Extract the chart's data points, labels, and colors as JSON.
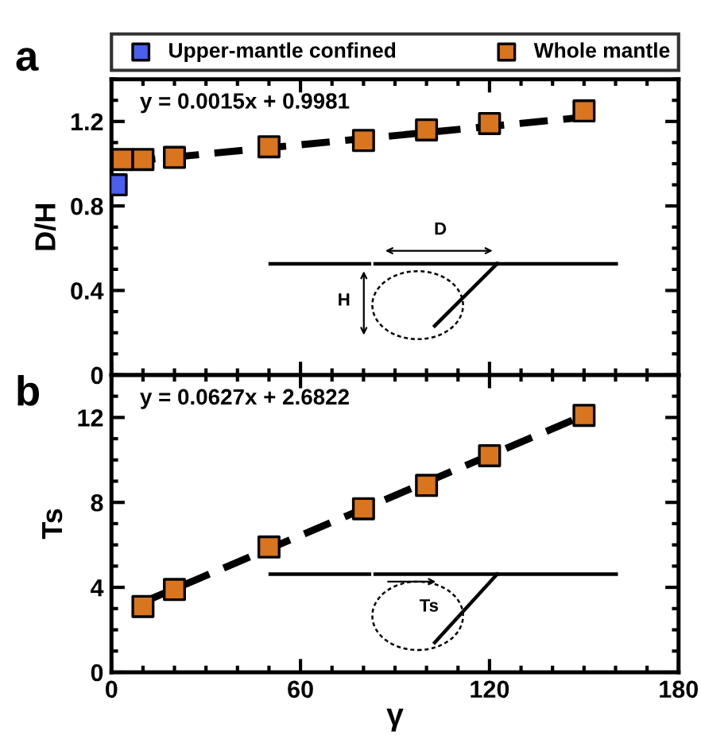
{
  "chart_data": [
    {
      "type": "scatter",
      "title": "a",
      "ylabel": "D/H",
      "xlim": [
        0,
        180
      ],
      "xticks": [
        0,
        60,
        120,
        180
      ],
      "ylim": [
        0,
        1.4
      ],
      "yticks": [
        {
          "value": 0,
          "label": "0"
        },
        0.4,
        0.8,
        1.2
      ],
      "tick_labels": "y",
      "legend": "top",
      "grid": false,
      "annotations": [
        "y = 0.0015x + 0.9981",
        "D",
        "H"
      ],
      "series": [
        {
          "name": "Upper-mantle confined",
          "color": "#4a5ef0",
          "marker": "square",
          "x": [
            1.5
          ],
          "values": [
            0.9
          ]
        },
        {
          "name": "Whole mantle",
          "color": "#d9741f",
          "marker": "square",
          "x": [
            3.5,
            10,
            20,
            50,
            80,
            100,
            120,
            150
          ],
          "values": [
            1.02,
            1.02,
            1.03,
            1.08,
            1.11,
            1.16,
            1.19,
            1.25
          ]
        },
        {
          "type": "line",
          "color": "#000000",
          "line_style": "dashed",
          "x": [
            5,
            150
          ],
          "values": [
            1.01,
            1.22
          ]
        }
      ]
    },
    {
      "type": "scatter",
      "title": "b",
      "xlabel": "γ",
      "ylabel": "Ts",
      "xlim": [
        0,
        180
      ],
      "xticks": [
        0,
        60,
        120,
        180
      ],
      "ylim": [
        0,
        14
      ],
      "yticks": [
        0,
        4,
        8,
        12
      ],
      "grid": false,
      "annotations": [
        "y = 0.0627x + 2.6822",
        "Ts"
      ],
      "series": [
        {
          "color": "#d9741f",
          "marker": "square",
          "x": [
            10,
            20,
            50,
            80,
            100,
            120,
            150
          ],
          "values": [
            3.1,
            3.9,
            5.9,
            7.7,
            8.8,
            10.2,
            12.1
          ]
        },
        {
          "type": "line",
          "color": "#000000",
          "line_style": "dashed",
          "x": [
            10,
            150
          ],
          "values": [
            3.3,
            12.1
          ]
        }
      ]
    }
  ]
}
